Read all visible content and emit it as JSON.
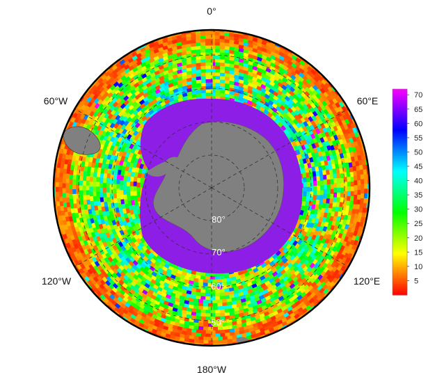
{
  "map": {
    "projection": "south-polar-stereographic",
    "longitude_labels": [
      "0°",
      "60°E",
      "120°E",
      "180°W",
      "120°W",
      "60°W"
    ],
    "latitude_labels": [
      "80°",
      "70°",
      "60°",
      "50°"
    ],
    "colors": {
      "land": "#808080",
      "sea_ice": "#8c1ee6",
      "frame": "#000000",
      "graticule": "#333333"
    }
  },
  "colorbar": {
    "ticks": [
      "70",
      "65",
      "60",
      "55",
      "50",
      "45",
      "40",
      "35",
      "30",
      "25",
      "20",
      "15",
      "10",
      "5"
    ],
    "range": [
      0,
      72
    ],
    "colors": [
      "#ff0000",
      "#ff8000",
      "#ffff00",
      "#80ff00",
      "#00ff00",
      "#00ff80",
      "#00ffff",
      "#0080ff",
      "#0000ff",
      "#8000ff",
      "#ff00ff"
    ]
  }
}
